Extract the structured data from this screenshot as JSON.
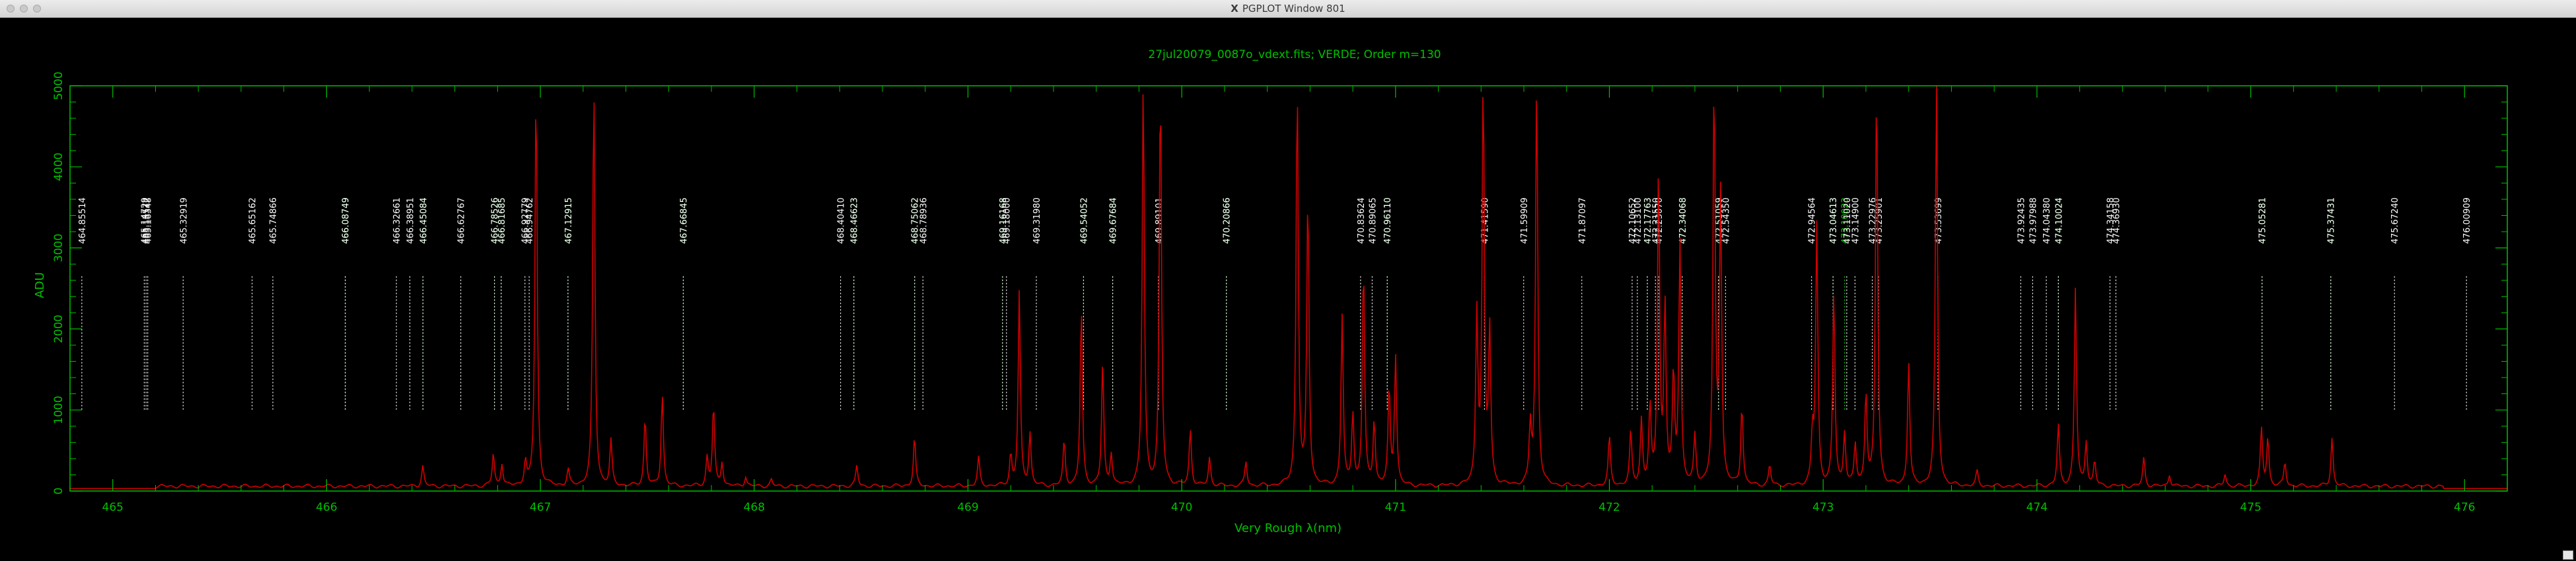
{
  "window": {
    "title": "PGPLOT Window 801",
    "title_icon": "x11-icon"
  },
  "chart_data": {
    "type": "line",
    "title": "27jul20079_0087o_vdext.fits; VERDE; Order m=130",
    "xlabel": "Very Rough λ(nm)",
    "ylabel": "ADU",
    "xlim": [
      464.8,
      476.2
    ],
    "ylim": [
      0,
      5000
    ],
    "xticks": [
      465,
      466,
      467,
      468,
      469,
      470,
      471,
      472,
      473,
      474,
      475,
      476
    ],
    "yticks": [
      0,
      1000,
      2000,
      3000,
      4000,
      5000
    ],
    "grid": false,
    "colors": {
      "frame": "#00c000",
      "spectrum": "#d00000",
      "white_lines": "#ffffff",
      "green_lines": "#00d000"
    },
    "spectrum_baseline": 60,
    "spectrum_peaks": [
      [
        466.45,
        250
      ],
      [
        466.78,
        400
      ],
      [
        466.82,
        280
      ],
      [
        466.93,
        300
      ],
      [
        466.98,
        5000
      ],
      [
        467.13,
        200
      ],
      [
        467.25,
        5000
      ],
      [
        467.33,
        550
      ],
      [
        467.49,
        850
      ],
      [
        467.57,
        1150
      ],
      [
        467.78,
        350
      ],
      [
        467.81,
        1000
      ],
      [
        467.85,
        300
      ],
      [
        467.96,
        120
      ],
      [
        468.08,
        80
      ],
      [
        468.48,
        250
      ],
      [
        468.75,
        600
      ],
      [
        469.05,
        350
      ],
      [
        469.2,
        380
      ],
      [
        469.24,
        2400
      ],
      [
        469.29,
        650
      ],
      [
        469.45,
        550
      ],
      [
        469.53,
        2200
      ],
      [
        469.63,
        1500
      ],
      [
        469.67,
        400
      ],
      [
        469.82,
        5000
      ],
      [
        469.9,
        5000
      ],
      [
        470.04,
        700
      ],
      [
        470.13,
        350
      ],
      [
        470.3,
        300
      ],
      [
        470.54,
        5000
      ],
      [
        470.59,
        3600
      ],
      [
        470.75,
        2100
      ],
      [
        470.8,
        900
      ],
      [
        470.85,
        2750
      ],
      [
        470.9,
        800
      ],
      [
        470.97,
        1200
      ],
      [
        471.0,
        1600
      ],
      [
        471.38,
        2100
      ],
      [
        471.41,
        5000
      ],
      [
        471.44,
        1900
      ],
      [
        471.63,
        700
      ],
      [
        471.66,
        5000
      ],
      [
        472.0,
        600
      ],
      [
        472.1,
        650
      ],
      [
        472.15,
        800
      ],
      [
        472.19,
        950
      ],
      [
        472.23,
        3900
      ],
      [
        472.26,
        2200
      ],
      [
        472.3,
        1350
      ],
      [
        472.33,
        3000
      ],
      [
        472.4,
        600
      ],
      [
        472.49,
        5000
      ],
      [
        472.52,
        3600
      ],
      [
        472.62,
        1000
      ],
      [
        472.75,
        250
      ],
      [
        472.95,
        600
      ],
      [
        472.97,
        3200
      ],
      [
        473.05,
        2400
      ],
      [
        473.1,
        650
      ],
      [
        473.15,
        500
      ],
      [
        473.2,
        1150
      ],
      [
        473.25,
        5000
      ],
      [
        473.4,
        1550
      ],
      [
        473.53,
        5000
      ],
      [
        473.72,
        180
      ],
      [
        474.1,
        750
      ],
      [
        474.18,
        2450
      ],
      [
        474.23,
        550
      ],
      [
        474.27,
        300
      ],
      [
        474.5,
        350
      ],
      [
        474.62,
        150
      ],
      [
        474.88,
        150
      ],
      [
        475.05,
        700
      ],
      [
        475.08,
        600
      ],
      [
        475.16,
        300
      ],
      [
        475.38,
        600
      ]
    ],
    "white_lines": [
      {
        "x": 464.85514,
        "label": "464.85514"
      },
      {
        "x": 465.14729,
        "label": "465.14729"
      },
      {
        "x": 465.15572,
        "label": "465.15572"
      },
      {
        "x": 465.16348,
        "label": "465.16348"
      },
      {
        "x": 465.32919,
        "label": "465.32919"
      },
      {
        "x": 465.65162,
        "label": "465.65162"
      },
      {
        "x": 465.74866,
        "label": "465.74866"
      },
      {
        "x": 466.08749,
        "label": "466.08749"
      },
      {
        "x": 466.32661,
        "label": "466.32661"
      },
      {
        "x": 466.38951,
        "label": "466.38951"
      },
      {
        "x": 466.45084,
        "label": "466.45084"
      },
      {
        "x": 466.62767,
        "label": "466.62767"
      },
      {
        "x": 466.78526,
        "label": "466.78526"
      },
      {
        "x": 466.81685,
        "label": "466.81685"
      },
      {
        "x": 466.92779,
        "label": "466.92779"
      },
      {
        "x": 466.94762,
        "label": "466.94762"
      },
      {
        "x": 467.12915,
        "label": "467.12915"
      },
      {
        "x": 467.66845,
        "label": "467.66845"
      },
      {
        "x": 468.4041,
        "label": "468.40410"
      },
      {
        "x": 468.46623,
        "label": "468.46623"
      },
      {
        "x": 468.75062,
        "label": "468.75062"
      },
      {
        "x": 468.78936,
        "label": "468.78936"
      },
      {
        "x": 469.16168,
        "label": "469.16168"
      },
      {
        "x": 469.18,
        "label": "469.18000"
      },
      {
        "x": 469.3198,
        "label": "469.31980"
      },
      {
        "x": 469.54052,
        "label": "469.54052"
      },
      {
        "x": 469.67684,
        "label": "469.67684"
      },
      {
        "x": 469.89101,
        "label": "469.89101"
      },
      {
        "x": 470.20866,
        "label": "470.20866"
      },
      {
        "x": 470.83624,
        "label": "470.83624"
      },
      {
        "x": 470.89065,
        "label": "470.89065"
      },
      {
        "x": 470.9611,
        "label": "470.96110"
      },
      {
        "x": 471.4159,
        "label": "471.41590"
      },
      {
        "x": 471.59909,
        "label": "471.59909"
      },
      {
        "x": 471.87097,
        "label": "471.87097"
      },
      {
        "x": 472.10652,
        "label": "472.10652"
      },
      {
        "x": 472.131,
        "label": "472.13100"
      },
      {
        "x": 472.17763,
        "label": "472.17763"
      },
      {
        "x": 472.2155,
        "label": "472.21550"
      },
      {
        "x": 472.2307,
        "label": "472.23070"
      },
      {
        "x": 472.34068,
        "label": "472.34068"
      },
      {
        "x": 472.51059,
        "label": "472.51059"
      },
      {
        "x": 472.5435,
        "label": "472.54350"
      },
      {
        "x": 472.94564,
        "label": "472.94564"
      },
      {
        "x": 473.04613,
        "label": "473.04613"
      },
      {
        "x": 473.1102,
        "label": "473.11020"
      },
      {
        "x": 473.149,
        "label": "473.14900"
      },
      {
        "x": 473.22976,
        "label": "473.22976"
      },
      {
        "x": 473.25901,
        "label": "473.25901"
      },
      {
        "x": 473.53699,
        "label": "473.53699"
      },
      {
        "x": 473.92435,
        "label": "473.92435"
      },
      {
        "x": 473.97988,
        "label": "473.97988"
      },
      {
        "x": 474.0438,
        "label": "474.04380"
      },
      {
        "x": 474.10024,
        "label": "474.10024"
      },
      {
        "x": 474.34158,
        "label": "474.34158"
      },
      {
        "x": 474.3693,
        "label": "474.36930"
      },
      {
        "x": 475.05281,
        "label": "475.05281"
      },
      {
        "x": 475.37431,
        "label": "475.37431"
      },
      {
        "x": 475.6724,
        "label": "475.67240"
      },
      {
        "x": 476.00909,
        "label": "476.00909"
      }
    ],
    "green_lines": [
      {
        "x": 466.08749,
        "label": "466.08749"
      },
      {
        "x": 466.45084,
        "label": "466.45084"
      },
      {
        "x": 466.78526,
        "label": "466.78526"
      },
      {
        "x": 466.81685,
        "label": "466.81685"
      },
      {
        "x": 467.12915,
        "label": "467.12915"
      },
      {
        "x": 467.66845,
        "label": "467.66845"
      },
      {
        "x": 468.46623,
        "label": "468.46623"
      },
      {
        "x": 468.75062,
        "label": "468.75062"
      },
      {
        "x": 469.16168,
        "label": "469.16168"
      },
      {
        "x": 469.54052,
        "label": "469.54052"
      },
      {
        "x": 469.67684,
        "label": "469.67684"
      },
      {
        "x": 470.20866,
        "label": "470.20866"
      },
      {
        "x": 470.9611,
        "label": "470.96110"
      },
      {
        "x": 472.17763,
        "label": "472.17763"
      },
      {
        "x": 472.34068,
        "label": "472.34068"
      },
      {
        "x": 472.51059,
        "label": "472.51059"
      },
      {
        "x": 473.04613,
        "label": "473.04613"
      },
      {
        "x": 473.10023,
        "label": "473.10023"
      },
      {
        "x": 474.10024,
        "label": "474.10024"
      },
      {
        "x": 475.05281,
        "label": "475.05281"
      },
      {
        "x": 475.37431,
        "label": "475.37431"
      }
    ]
  }
}
